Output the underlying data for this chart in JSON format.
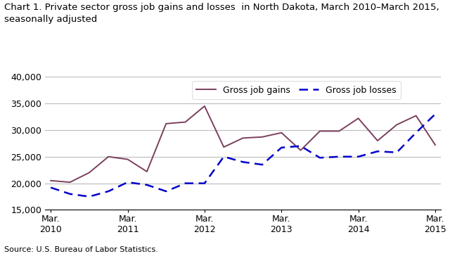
{
  "title": "Chart 1. Private sector gross job gains and losses  in North Dakota, March 2010–March 2015,\nseasonally adjusted",
  "source": "Source: U.S. Bureau of Labor Statistics.",
  "gains_label": "Gross job gains",
  "losses_label": "Gross job losses",
  "gains_color": "#7B3F5E",
  "losses_color": "#0000CC",
  "gains_data": [
    20500,
    20200,
    22000,
    25000,
    24500,
    22200,
    31200,
    31500,
    34500,
    26800,
    28500,
    28700,
    29500,
    26200,
    29800,
    29800,
    32200,
    28000,
    31000,
    32700,
    27200
  ],
  "losses_data": [
    19200,
    18000,
    17500,
    18500,
    20200,
    19700,
    18500,
    20000,
    20000,
    25000,
    24000,
    23500,
    26700,
    27000,
    24800,
    25000,
    25000,
    26000,
    25800,
    29500,
    33000
  ],
  "x_ticks_indices": [
    0,
    4,
    8,
    12,
    16,
    20
  ],
  "x_tick_labels": [
    "Mar.\n2010",
    "Mar.\n2011",
    "Mar.\n2012",
    "Mar.\n2013",
    "Mar.\n2014",
    "Mar.\n2015"
  ],
  "ytick_values": [
    15000,
    20000,
    25000,
    30000,
    35000,
    40000
  ],
  "ytick_labels": [
    "15,000",
    "20,000",
    "25,000",
    "30,000",
    "35,000",
    "40,000"
  ],
  "ylim": [
    15000,
    40000
  ],
  "grid_color": "#bbbbbb",
  "title_fontsize": 9.5,
  "axis_fontsize": 9,
  "legend_fontsize": 9,
  "source_fontsize": 8
}
